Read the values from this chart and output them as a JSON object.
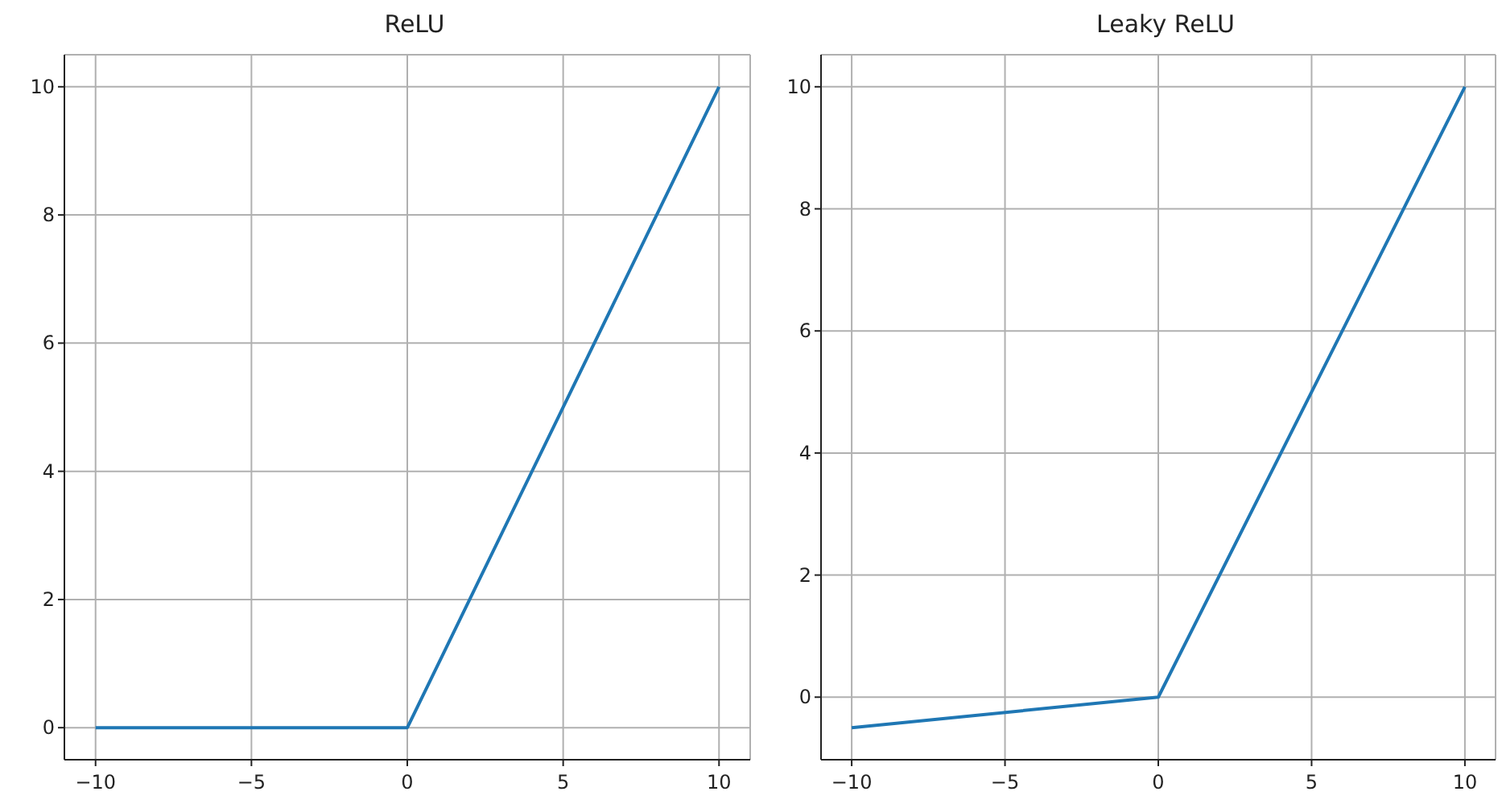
{
  "chart_data": [
    {
      "type": "line",
      "title": "ReLU",
      "x": [
        -10,
        0,
        10
      ],
      "series": [
        {
          "color": "#1f77b4",
          "values": [
            0,
            0,
            10
          ]
        }
      ],
      "xlim": [
        -11,
        11
      ],
      "xticks": [
        -10,
        -5,
        0,
        5,
        10
      ],
      "ylim": [
        -0.5,
        10.5
      ],
      "yticks": [
        0,
        2,
        4,
        6,
        8,
        10
      ],
      "grid": true
    },
    {
      "type": "line",
      "title": "Leaky ReLU",
      "x": [
        -10,
        0,
        10
      ],
      "series": [
        {
          "color": "#1f77b4",
          "values": [
            -0.5,
            0,
            10
          ]
        }
      ],
      "xlim": [
        -11,
        11
      ],
      "xticks": [
        -10,
        -5,
        0,
        5,
        10
      ],
      "ylim": [
        -1.025,
        10.525
      ],
      "yticks": [
        0,
        2,
        4,
        6,
        8,
        10
      ],
      "grid": true
    }
  ]
}
